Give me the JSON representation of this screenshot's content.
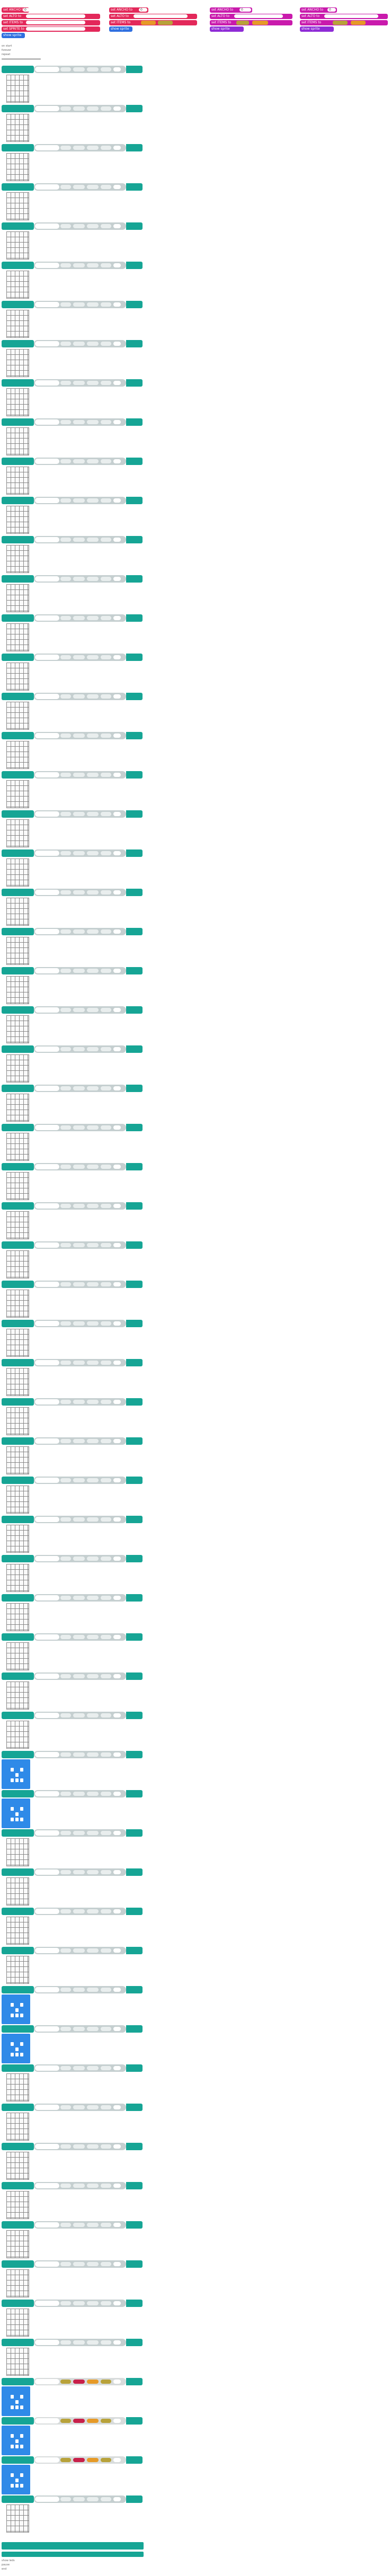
{
  "window": {
    "title": ""
  },
  "top_panels": [
    {
      "blocks": [
        {
          "label": "set ANCHO to",
          "value": "0",
          "color": "#e3285a"
        },
        {
          "label": "set ALTO to",
          "value": "",
          "color": "#e3285a"
        },
        {
          "label": "set ITEMS to",
          "value": "",
          "color": "#e3285a"
        },
        {
          "label": "set SPRITE to",
          "value": "",
          "color": "#e3285a"
        },
        {
          "label": "show sprite",
          "value": "",
          "color": "#3a6fe0"
        }
      ]
    },
    {
      "blocks": [
        {
          "label": "set ANCHO to",
          "value": "0",
          "color": "#c91aac"
        },
        {
          "label": "set ALTO to",
          "value": "",
          "color": "#e3285a"
        },
        {
          "label": "set ITEMS to",
          "value": "",
          "color": "#e3285a"
        },
        {
          "label": "show sprite",
          "value": "",
          "color": "#3a6fe0"
        }
      ]
    },
    {
      "blocks": [
        {
          "label": "set ANCHO to",
          "value": "0",
          "color": "#c91aac"
        },
        {
          "label": "set ALTO to",
          "value": "",
          "color": "#c91aac"
        },
        {
          "label": "set ITEMS to",
          "value": "",
          "color": "#c91aac"
        },
        {
          "label": "show sprite",
          "value": "",
          "color": "#8e2bd6"
        }
      ]
    },
    {
      "blocks": [
        {
          "label": "set ANCHO to",
          "value": "0",
          "color": "#c91aac"
        },
        {
          "label": "set ALTO to",
          "value": "",
          "color": "#c91aac"
        },
        {
          "label": "set ITEMS to",
          "value": "",
          "color": "#c91aac"
        },
        {
          "label": "show sprite",
          "value": "",
          "color": "#8e2bd6"
        }
      ]
    }
  ],
  "header_labels": {
    "line1": "on start",
    "line2": "forever",
    "line3": "repeat"
  },
  "row_block": {
    "label": "set pixel",
    "end_label": "x"
  },
  "bottom_labels": {
    "line1": "show leds",
    "line2": "pause",
    "line3": "end"
  }
}
